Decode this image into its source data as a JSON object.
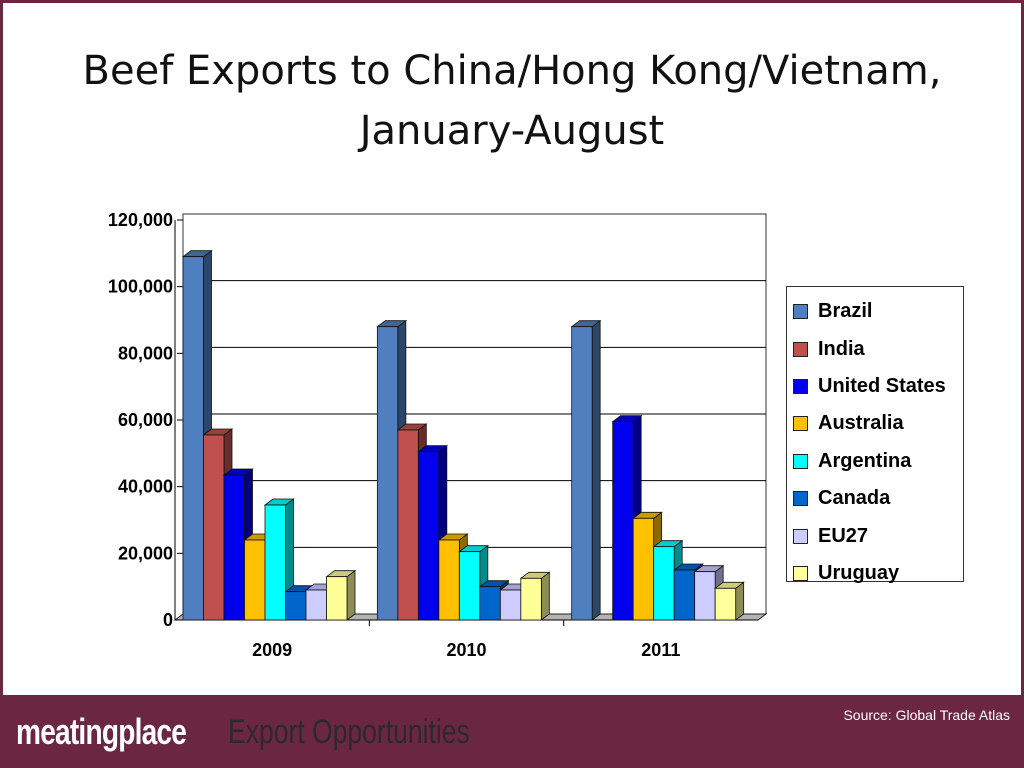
{
  "slide": {
    "title_line1": "Beef Exports to China/Hong Kong/Vietnam,",
    "title_line2": "January-August",
    "source": "Source: Global Trade Atlas",
    "brand": "meatingplace",
    "tagline": "Export Opportunities"
  },
  "colors": {
    "frame": "#6b2740",
    "footer": "#6b2740"
  },
  "chart_data": {
    "type": "bar",
    "title": "Beef Exports to China/Hong Kong/Vietnam, January-August",
    "xlabel": "",
    "ylabel": "",
    "categories": [
      "2009",
      "2010",
      "2011"
    ],
    "ylim": [
      0,
      120000
    ],
    "yticks": [
      "0",
      "20,000",
      "40,000",
      "60,000",
      "80,000",
      "100,000",
      "120,000"
    ],
    "grid": true,
    "legend_position": "right",
    "style": "3d-clustered-column",
    "series": [
      {
        "name": "Brazil",
        "color": "#4f7fbf",
        "values": [
          109000,
          88000,
          88000
        ]
      },
      {
        "name": "India",
        "color": "#c0504d",
        "values": [
          55500,
          57000,
          0
        ]
      },
      {
        "name": "United States",
        "color": "#0000ee",
        "values": [
          43500,
          50500,
          59500
        ]
      },
      {
        "name": "Australia",
        "color": "#ffc000",
        "values": [
          24000,
          24000,
          30500
        ]
      },
      {
        "name": "Argentina",
        "color": "#00ffff",
        "values": [
          34500,
          20500,
          22000
        ]
      },
      {
        "name": "Canada",
        "color": "#0066cc",
        "values": [
          8500,
          10000,
          15000
        ]
      },
      {
        "name": "EU27",
        "color": "#ccccff",
        "values": [
          9000,
          9000,
          14500
        ]
      },
      {
        "name": "Uruguay",
        "color": "#ffff99",
        "values": [
          13000,
          12500,
          9500
        ]
      }
    ]
  }
}
